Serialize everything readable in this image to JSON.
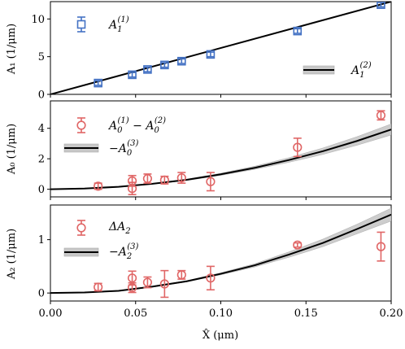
{
  "colors": {
    "blue": "#4472C4",
    "red": "#E06666",
    "fit_line": "#000000",
    "band": "#c8c8c8"
  },
  "chart_data": [
    {
      "type": "scatter",
      "panel": "top",
      "ylabel": "A₁ (1/μm)",
      "xlim": [
        0.0,
        0.2
      ],
      "ylim": [
        0,
        12.3
      ],
      "yticks": [
        "0",
        "5",
        "10"
      ],
      "ytick_values": [
        0,
        5,
        10
      ],
      "legend_position": "top-left and lower-right",
      "series": [
        {
          "name": "A₁⁽¹⁾",
          "marker": "square",
          "color": "blue",
          "x": [
            0.028,
            0.048,
            0.057,
            0.067,
            0.077,
            0.094,
            0.145,
            0.194
          ],
          "y": [
            1.5,
            2.6,
            3.3,
            3.9,
            4.4,
            5.3,
            8.4,
            11.9
          ],
          "yerr": [
            0.3,
            0.3,
            0.3,
            0.3,
            0.3,
            0.3,
            0.3,
            0.3
          ]
        },
        {
          "name": "A₁⁽²⁾",
          "type": "line",
          "color": "fit_line",
          "x": [
            0.0,
            0.2
          ],
          "y": [
            0.0,
            12.3
          ]
        }
      ]
    },
    {
      "type": "scatter",
      "panel": "middle",
      "ylabel": "A₀ (1/μm)",
      "xlim": [
        0.0,
        0.2
      ],
      "ylim": [
        -0.5,
        5.8
      ],
      "yticks": [
        "0",
        "2",
        "4"
      ],
      "ytick_values": [
        0,
        2,
        4
      ],
      "legend_position": "top-left",
      "series": [
        {
          "name": "A₀⁽¹⁾ − A₀⁽²⁾",
          "marker": "circle",
          "color": "red",
          "x": [
            0.028,
            0.048,
            0.048,
            0.057,
            0.067,
            0.077,
            0.094,
            0.145,
            0.194
          ],
          "y": [
            0.2,
            0.55,
            0.05,
            0.7,
            0.6,
            0.75,
            0.5,
            2.75,
            4.85
          ],
          "yerr": [
            0.2,
            0.35,
            0.4,
            0.3,
            0.25,
            0.35,
            0.6,
            0.6,
            0.3
          ]
        },
        {
          "name": "−A₀⁽³⁾",
          "type": "line",
          "color": "fit_line",
          "x": [
            0.0,
            0.02,
            0.04,
            0.06,
            0.08,
            0.1,
            0.12,
            0.14,
            0.16,
            0.18,
            0.2
          ],
          "y": [
            0.0,
            0.05,
            0.16,
            0.36,
            0.62,
            0.98,
            1.41,
            1.92,
            2.5,
            3.17,
            3.92
          ],
          "band_halfwidth": [
            0.0,
            0.0,
            0.01,
            0.02,
            0.04,
            0.07,
            0.1,
            0.15,
            0.21,
            0.28,
            0.36
          ]
        }
      ]
    },
    {
      "type": "scatter",
      "panel": "bottom",
      "ylabel": "A₂ (1/μm)",
      "xlabel": "X̂ (μm)",
      "xlim": [
        0.0,
        0.2
      ],
      "ylim": [
        -0.15,
        1.65
      ],
      "xticks": [
        "0.00",
        "0.05",
        "0.10",
        "0.15",
        "0.20"
      ],
      "xtick_values": [
        0.0,
        0.05,
        0.1,
        0.15,
        0.2
      ],
      "yticks": [
        "0",
        "1"
      ],
      "ytick_values": [
        0,
        1
      ],
      "legend_position": "top-left",
      "series": [
        {
          "name": "ΔA₂",
          "marker": "circle",
          "color": "red",
          "x": [
            0.028,
            0.048,
            0.048,
            0.057,
            0.067,
            0.077,
            0.094,
            0.145,
            0.194
          ],
          "y": [
            0.11,
            0.28,
            0.1,
            0.2,
            0.17,
            0.34,
            0.28,
            0.9,
            0.87
          ],
          "yerr": [
            0.07,
            0.13,
            0.09,
            0.1,
            0.25,
            0.08,
            0.22,
            0.04,
            0.27
          ]
        },
        {
          "name": "−A₂⁽³⁾",
          "type": "line",
          "color": "fit_line",
          "x": [
            0.0,
            0.02,
            0.04,
            0.06,
            0.08,
            0.1,
            0.12,
            0.14,
            0.16,
            0.18,
            0.2
          ],
          "y": [
            0.0,
            0.01,
            0.04,
            0.12,
            0.22,
            0.36,
            0.52,
            0.72,
            0.94,
            1.2,
            1.47
          ],
          "band_halfwidth": [
            0.0,
            0.0,
            0.0,
            0.01,
            0.01,
            0.02,
            0.03,
            0.05,
            0.07,
            0.09,
            0.12
          ]
        }
      ]
    }
  ],
  "legends": {
    "top_a_main": "A",
    "top_a_sub": "1",
    "top_a_sup": "(1)",
    "top_b_main": "A",
    "top_b_sub": "1",
    "top_b_sup": "(2)",
    "mid_a_part1_main": "A",
    "mid_a_part1_sub": "0",
    "mid_a_part1_sup": "(1)",
    "mid_a_minus": " − ",
    "mid_a_part2_main": "A",
    "mid_a_part2_sub": "0",
    "mid_a_part2_sup": "(2)",
    "mid_b_prefix": "−",
    "mid_b_main": "A",
    "mid_b_sub": "0",
    "mid_b_sup": "(3)",
    "bot_a_prefix": "Δ",
    "bot_a_main": "A",
    "bot_a_sub": "2",
    "bot_b_prefix": "−",
    "bot_b_main": "A",
    "bot_b_sub": "2",
    "bot_b_sup": "(3)"
  }
}
